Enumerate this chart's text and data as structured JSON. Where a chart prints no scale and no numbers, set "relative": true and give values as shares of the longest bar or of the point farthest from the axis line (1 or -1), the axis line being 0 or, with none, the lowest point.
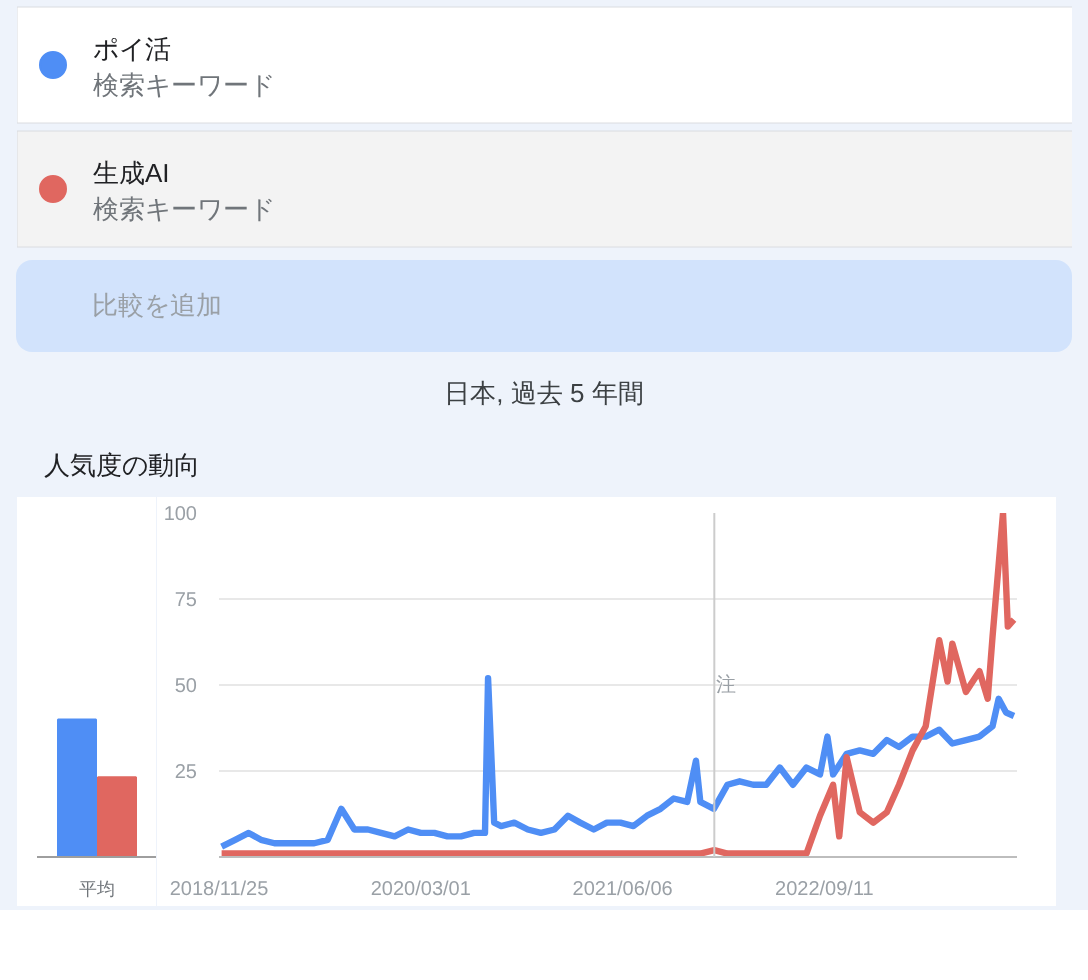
{
  "chart_data": [
    {
      "type": "line",
      "title": "人気度の動向",
      "subtitle": "日本, 過去 5 年間",
      "legend": "top",
      "grid": "y",
      "line_style": "solid",
      "annotations": [
        "検索キーワード",
        "検索キーワード",
        "比較を追加"
      ],
      "xlim": [
        "2018-11-25",
        "2023-11-26"
      ],
      "xticks": [
        {
          "value": "2018-11-25",
          "label": "2018/11/25"
        },
        {
          "value": "2020-03-01",
          "label": "2020/03/01"
        },
        {
          "value": "2021-06-06",
          "label": "2021/06/06"
        },
        {
          "value": "2022-09-11",
          "label": "2022/09/11"
        }
      ],
      "ylim": [
        0,
        100
      ],
      "yticks": [
        25,
        50,
        75,
        100
      ],
      "ref_lines": [
        {
          "axis": "x",
          "value": "2022-01-02",
          "label": "注"
        }
      ],
      "series": [
        {
          "name": "ポイ活",
          "color": "#4f8ef5",
          "x": [
            "2018-12-01",
            "2019-01-01",
            "2019-02-01",
            "2019-03-01",
            "2019-04-01",
            "2019-05-01",
            "2019-06-01",
            "2019-07-01",
            "2019-08-01",
            "2019-09-01",
            "2019-10-01",
            "2019-11-01",
            "2019-12-01",
            "2020-01-01",
            "2020-02-01",
            "2020-03-01",
            "2020-04-01",
            "2020-05-01",
            "2020-06-01",
            "2020-07-01",
            "2020-07-26",
            "2020-08-02",
            "2020-08-16",
            "2020-09-01",
            "2020-10-01",
            "2020-11-01",
            "2020-12-01",
            "2021-01-01",
            "2021-02-01",
            "2021-03-01",
            "2021-04-01",
            "2021-05-01",
            "2021-06-01",
            "2021-07-01",
            "2021-08-01",
            "2021-09-01",
            "2021-10-01",
            "2021-11-01",
            "2021-11-21",
            "2021-12-01",
            "2022-01-01",
            "2022-02-01",
            "2022-03-01",
            "2022-04-01",
            "2022-05-01",
            "2022-06-01",
            "2022-07-01",
            "2022-08-01",
            "2022-09-01",
            "2022-09-18",
            "2022-10-01",
            "2022-11-01",
            "2022-12-01",
            "2023-01-01",
            "2023-02-01",
            "2023-03-01",
            "2023-04-01",
            "2023-05-01",
            "2023-06-01",
            "2023-07-01",
            "2023-08-01",
            "2023-09-01",
            "2023-10-01",
            "2023-10-15",
            "2023-11-01",
            "2023-11-19"
          ],
          "values": [
            3,
            5,
            7,
            5,
            4,
            4,
            4,
            4,
            5,
            14,
            8,
            8,
            7,
            6,
            8,
            7,
            7,
            6,
            6,
            7,
            7,
            52,
            10,
            9,
            10,
            8,
            7,
            8,
            12,
            10,
            8,
            10,
            10,
            9,
            12,
            14,
            17,
            16,
            28,
            16,
            14,
            21,
            22,
            21,
            21,
            26,
            21,
            26,
            24,
            35,
            24,
            30,
            31,
            30,
            34,
            32,
            35,
            35,
            37,
            33,
            34,
            35,
            38,
            46,
            42,
            41
          ]
        },
        {
          "name": "生成AI",
          "color": "#e06760",
          "x": [
            "2018-12-01",
            "2019-06-01",
            "2019-12-01",
            "2020-06-01",
            "2020-12-01",
            "2021-06-01",
            "2021-12-01",
            "2022-01-02",
            "2022-02-01",
            "2022-08-01",
            "2022-09-01",
            "2022-10-01",
            "2022-10-15",
            "2022-11-01",
            "2022-12-01",
            "2023-01-01",
            "2023-02-01",
            "2023-03-01",
            "2023-04-01",
            "2023-05-01",
            "2023-06-01",
            "2023-06-20",
            "2023-07-01",
            "2023-08-01",
            "2023-09-01",
            "2023-09-20",
            "2023-10-01",
            "2023-10-25",
            "2023-11-05",
            "2023-11-19"
          ],
          "values": [
            1,
            1,
            1,
            1,
            1,
            1,
            1,
            2,
            1,
            1,
            12,
            21,
            6,
            29,
            13,
            10,
            13,
            21,
            31,
            38,
            63,
            51,
            62,
            48,
            54,
            46,
            64,
            100,
            67,
            69
          ]
        }
      ]
    },
    {
      "type": "bar",
      "relative": true,
      "categories": [
        "平均"
      ],
      "series": [
        {
          "color": "#4f8ef5",
          "values": [
            1
          ]
        },
        {
          "color": "#e06760",
          "values": [
            0.58
          ]
        }
      ]
    }
  ]
}
